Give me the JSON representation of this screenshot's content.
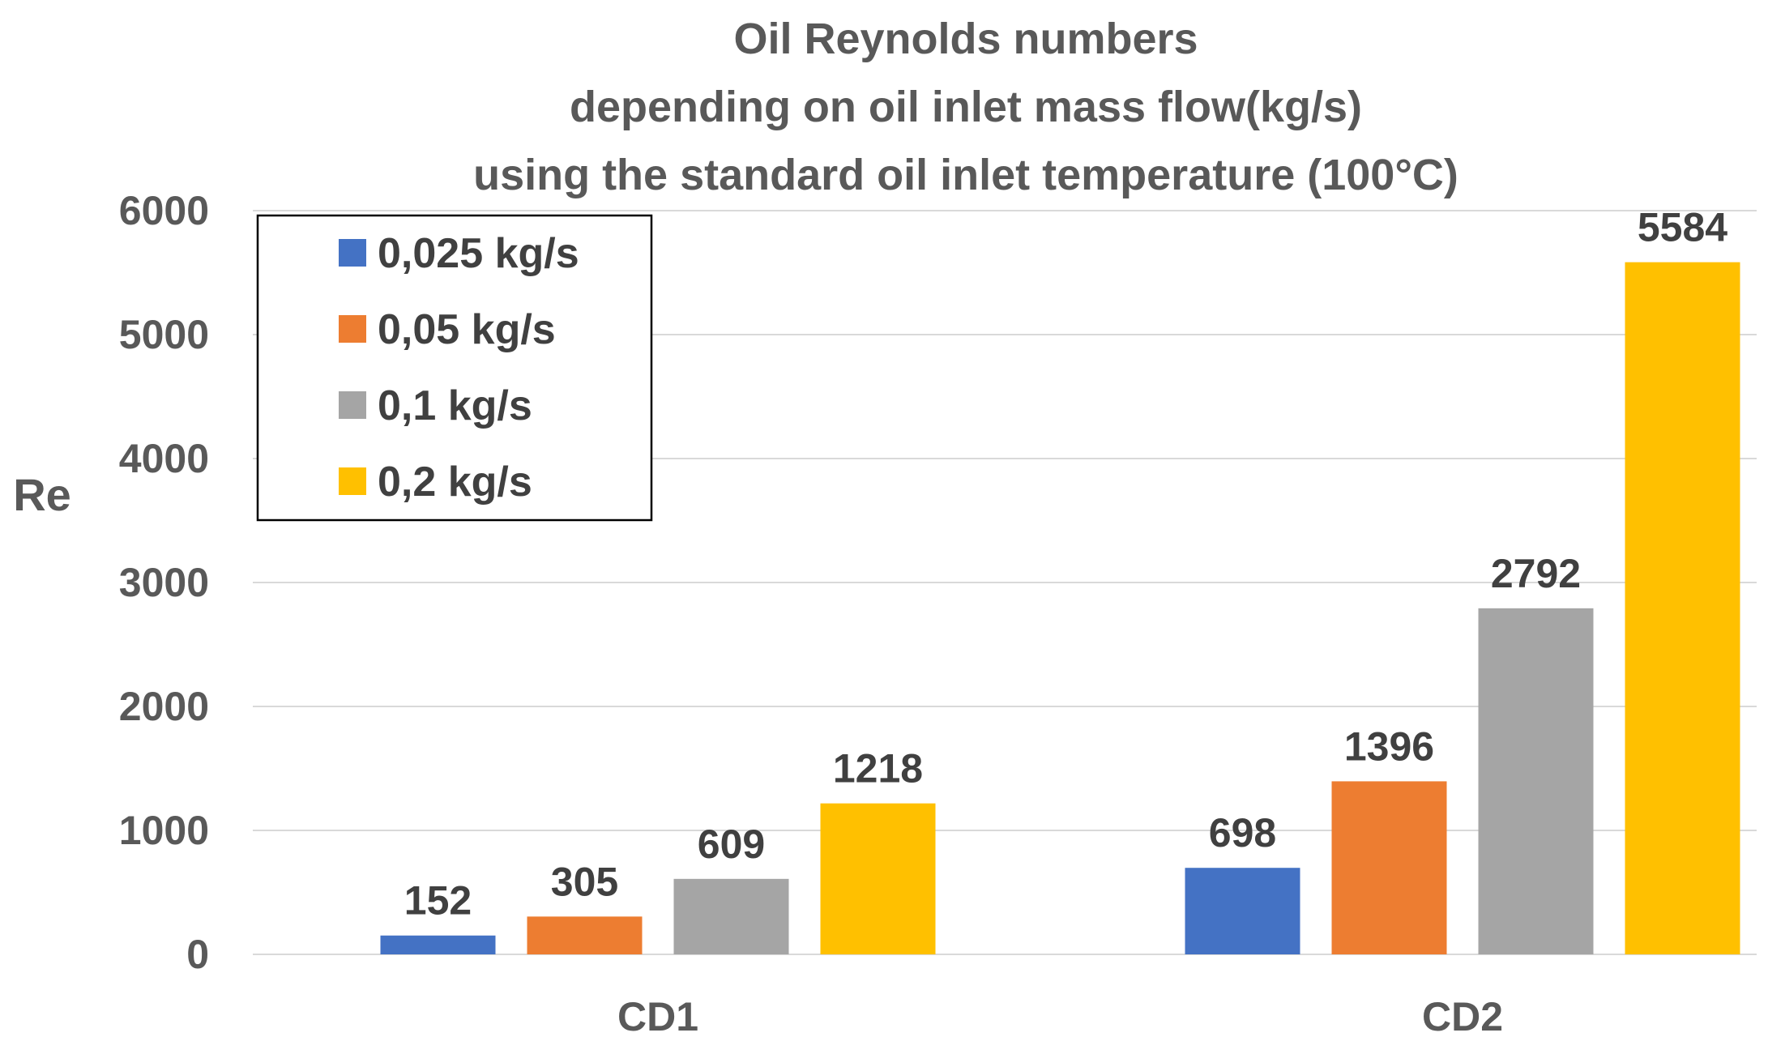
{
  "chart_data": {
    "type": "bar",
    "title": [
      "Oil Reynolds numbers",
      "depending on oil inlet mass flow(kg/s)",
      "using the standard oil inlet temperature (100°C)"
    ],
    "xlabel": "",
    "ylabel": "Re",
    "categories": [
      "CD1",
      "CD2"
    ],
    "series": [
      {
        "name": "0,025 kg/s",
        "color": "#4472C4",
        "values": [
          152,
          698
        ]
      },
      {
        "name": "0,05 kg/s",
        "color": "#ED7D31",
        "values": [
          305,
          1396
        ]
      },
      {
        "name": "0,1 kg/s",
        "color": "#A5A5A5",
        "values": [
          609,
          2792
        ]
      },
      {
        "name": "0,2 kg/s",
        "color": "#FFC000",
        "values": [
          1218,
          5584
        ]
      }
    ],
    "ylim": [
      0,
      6000
    ],
    "yticks": [
      0,
      1000,
      2000,
      3000,
      4000,
      5000,
      6000
    ],
    "grid": true,
    "legend_position": "top-left",
    "data_labels": true
  }
}
